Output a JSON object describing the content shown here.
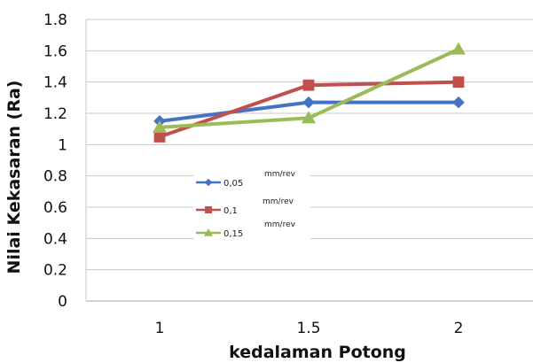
{
  "chart_data": {
    "type": "line",
    "title": "",
    "xlabel": "kedalaman Potong",
    "ylabel": "Nilai Kekasaran (Ra)",
    "categories": [
      "1",
      "1.5",
      "2"
    ],
    "ylim": [
      0,
      1.8
    ],
    "yticks": [
      "0",
      "0.2",
      "0.4",
      "0.6",
      "0.8",
      "1",
      "1.2",
      "1.4",
      "1.6",
      "1.8"
    ],
    "grid": true,
    "legend_position": "center",
    "legend_unit": "mm/rev",
    "series": [
      {
        "name": "0,05",
        "values": [
          1.15,
          1.27,
          1.27
        ],
        "color": "#4472C4",
        "marker": "diamond"
      },
      {
        "name": "0,1",
        "values": [
          1.05,
          1.38,
          1.4
        ],
        "color": "#C0504D",
        "marker": "square"
      },
      {
        "name": "0,15",
        "values": [
          1.11,
          1.17,
          1.61
        ],
        "color": "#9BBB59",
        "marker": "triangle"
      }
    ]
  }
}
